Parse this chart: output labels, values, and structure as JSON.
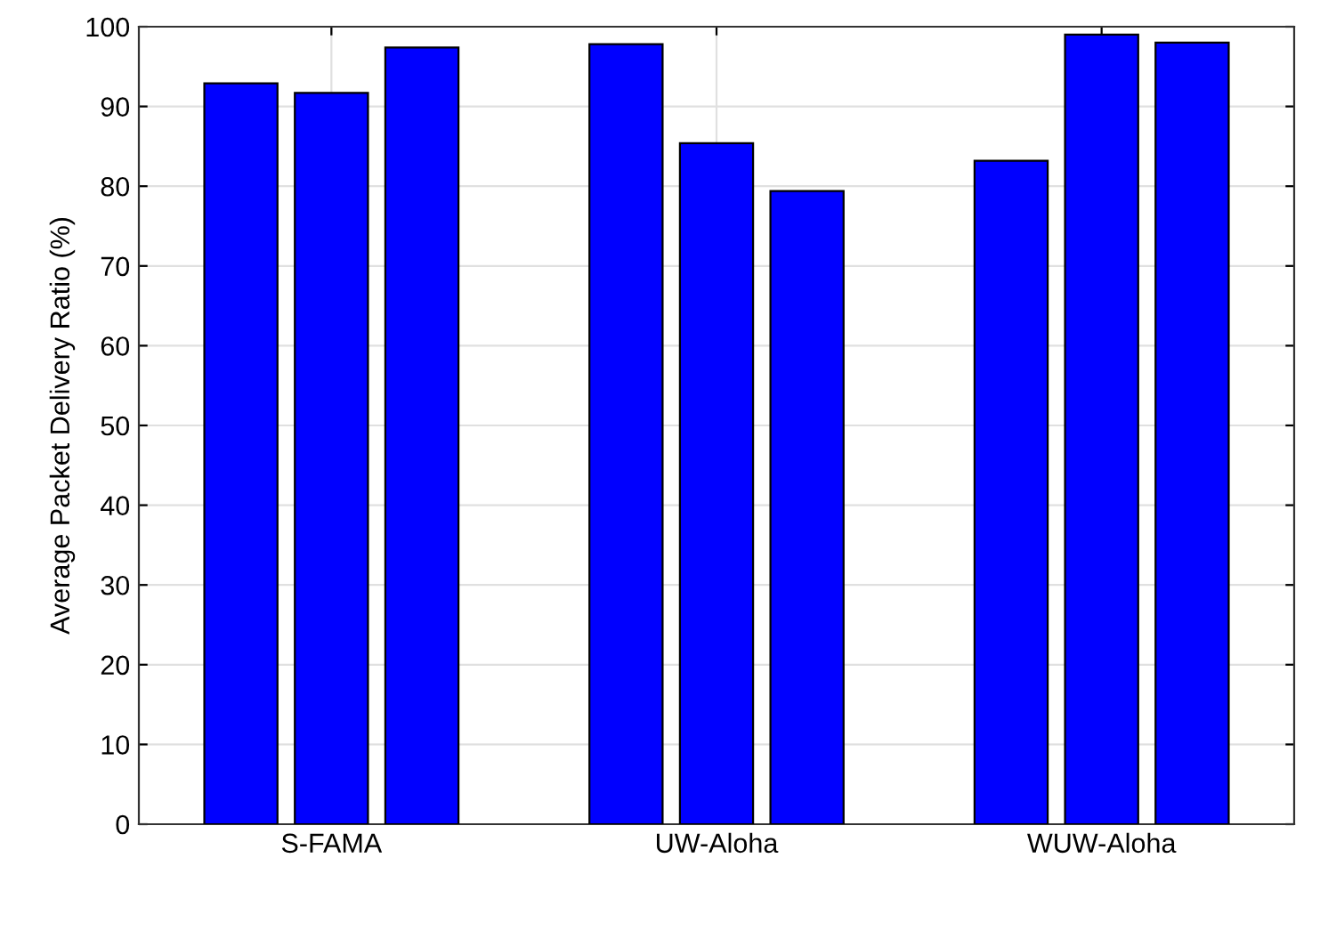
{
  "chart_data": {
    "type": "bar",
    "ylabel": "Average Packet Delivery Ratio (%)",
    "categories": [
      "S-FAMA",
      "UW-Aloha",
      "WUW-Aloha"
    ],
    "series": [
      {
        "color": "#0000ff",
        "values": [
          92.9,
          97.8,
          83.2
        ]
      },
      {
        "color": "#0000ff",
        "values": [
          91.7,
          85.4,
          99.0
        ]
      },
      {
        "color": "#0000ff",
        "values": [
          97.4,
          79.4,
          98.0
        ]
      }
    ],
    "ylim": [
      0,
      100
    ],
    "yticks": [
      0,
      10,
      20,
      30,
      40,
      50,
      60,
      70,
      80,
      90,
      100
    ],
    "grid": true
  }
}
